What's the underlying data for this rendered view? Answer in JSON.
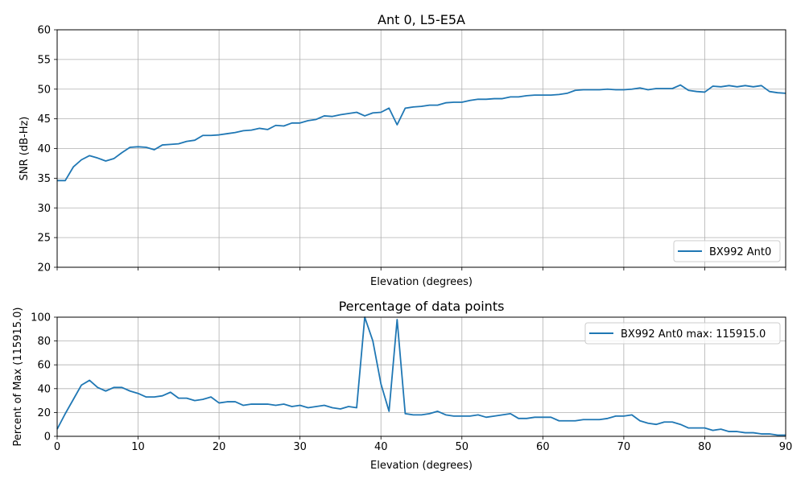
{
  "chart_data": [
    {
      "type": "line",
      "title": "Ant 0, L5-E5A",
      "xlabel": "Elevation (degrees)",
      "ylabel": "SNR (dB-Hz)",
      "xlim": [
        0,
        90
      ],
      "ylim": [
        20,
        60
      ],
      "xticks": [
        0,
        10,
        20,
        30,
        40,
        50,
        60,
        70,
        80,
        90
      ],
      "yticks": [
        20,
        25,
        30,
        35,
        40,
        45,
        50,
        55,
        60
      ],
      "show_xtick_labels": false,
      "grid": true,
      "legend_position": "lower-right",
      "series": [
        {
          "name": "BX992 Ant0",
          "color": "#1f77b4",
          "x": [
            0,
            1,
            2,
            3,
            4,
            5,
            6,
            7,
            8,
            9,
            10,
            11,
            12,
            13,
            14,
            15,
            16,
            17,
            18,
            19,
            20,
            21,
            22,
            23,
            24,
            25,
            26,
            27,
            28,
            29,
            30,
            31,
            32,
            33,
            34,
            35,
            36,
            37,
            38,
            39,
            40,
            41,
            42,
            43,
            44,
            45,
            46,
            47,
            48,
            49,
            50,
            51,
            52,
            53,
            54,
            55,
            56,
            57,
            58,
            59,
            60,
            61,
            62,
            63,
            64,
            65,
            66,
            67,
            68,
            69,
            70,
            71,
            72,
            73,
            74,
            75,
            76,
            77,
            78,
            79,
            80,
            81,
            82,
            83,
            84,
            85,
            86,
            87,
            88,
            89,
            90
          ],
          "y": [
            34.6,
            34.6,
            36.9,
            38.1,
            38.8,
            38.4,
            37.9,
            38.3,
            39.3,
            40.2,
            40.3,
            40.2,
            39.8,
            40.6,
            40.7,
            40.8,
            41.2,
            41.4,
            42.2,
            42.2,
            42.3,
            42.5,
            42.7,
            43.0,
            43.1,
            43.4,
            43.2,
            43.9,
            43.8,
            44.3,
            44.3,
            44.7,
            44.9,
            45.5,
            45.4,
            45.7,
            45.9,
            46.1,
            45.5,
            46.0,
            46.1,
            46.8,
            44.0,
            46.8,
            47.0,
            47.1,
            47.3,
            47.3,
            47.7,
            47.8,
            47.8,
            48.1,
            48.3,
            48.3,
            48.4,
            48.4,
            48.7,
            48.7,
            48.9,
            49.0,
            49.0,
            49.0,
            49.1,
            49.3,
            49.8,
            49.9,
            49.9,
            49.9,
            50.0,
            49.9,
            49.9,
            50.0,
            50.2,
            49.9,
            50.1,
            50.1,
            50.1,
            50.7,
            49.8,
            49.6,
            49.5,
            50.5,
            50.4,
            50.6,
            50.4,
            50.6,
            50.4,
            50.6,
            49.6,
            49.4,
            49.3
          ]
        }
      ]
    },
    {
      "type": "line",
      "title": "Percentage of data points",
      "xlabel": "Elevation (degrees)",
      "ylabel": "Percent of Max (115915.0)",
      "xlim": [
        0,
        90
      ],
      "ylim": [
        0,
        100
      ],
      "xticks": [
        0,
        10,
        20,
        30,
        40,
        50,
        60,
        70,
        80,
        90
      ],
      "yticks": [
        0,
        20,
        40,
        60,
        80,
        100
      ],
      "show_xtick_labels": true,
      "grid": true,
      "legend_position": "upper-right",
      "series": [
        {
          "name": "BX992 Ant0 max: 115915.0",
          "color": "#1f77b4",
          "x": [
            0,
            1,
            2,
            3,
            4,
            5,
            6,
            7,
            8,
            9,
            10,
            11,
            12,
            13,
            14,
            15,
            16,
            17,
            18,
            19,
            20,
            21,
            22,
            23,
            24,
            25,
            26,
            27,
            28,
            29,
            30,
            31,
            32,
            33,
            34,
            35,
            36,
            37,
            38,
            39,
            40,
            41,
            42,
            43,
            44,
            45,
            46,
            47,
            48,
            49,
            50,
            51,
            52,
            53,
            54,
            55,
            56,
            57,
            58,
            59,
            60,
            61,
            62,
            63,
            64,
            65,
            66,
            67,
            68,
            69,
            70,
            71,
            72,
            73,
            74,
            75,
            76,
            77,
            78,
            79,
            80,
            81,
            82,
            83,
            84,
            85,
            86,
            87,
            88,
            89,
            90
          ],
          "y": [
            6,
            19,
            31,
            43,
            47,
            41,
            38,
            41,
            41,
            38,
            36,
            33,
            33,
            34,
            37,
            32,
            32,
            30,
            31,
            33,
            28,
            29,
            29,
            26,
            27,
            27,
            27,
            26,
            27,
            25,
            26,
            24,
            25,
            26,
            24,
            23,
            25,
            24,
            100,
            80,
            44,
            21,
            98,
            19,
            18,
            18,
            19,
            21,
            18,
            17,
            17,
            17,
            18,
            16,
            17,
            18,
            19,
            15,
            15,
            16,
            16,
            16,
            13,
            13,
            13,
            14,
            14,
            14,
            15,
            17,
            17,
            18,
            13,
            11,
            10,
            12,
            12,
            10,
            7,
            7,
            7,
            5,
            6,
            4,
            4,
            3,
            3,
            2,
            2,
            1,
            1
          ]
        }
      ]
    }
  ]
}
